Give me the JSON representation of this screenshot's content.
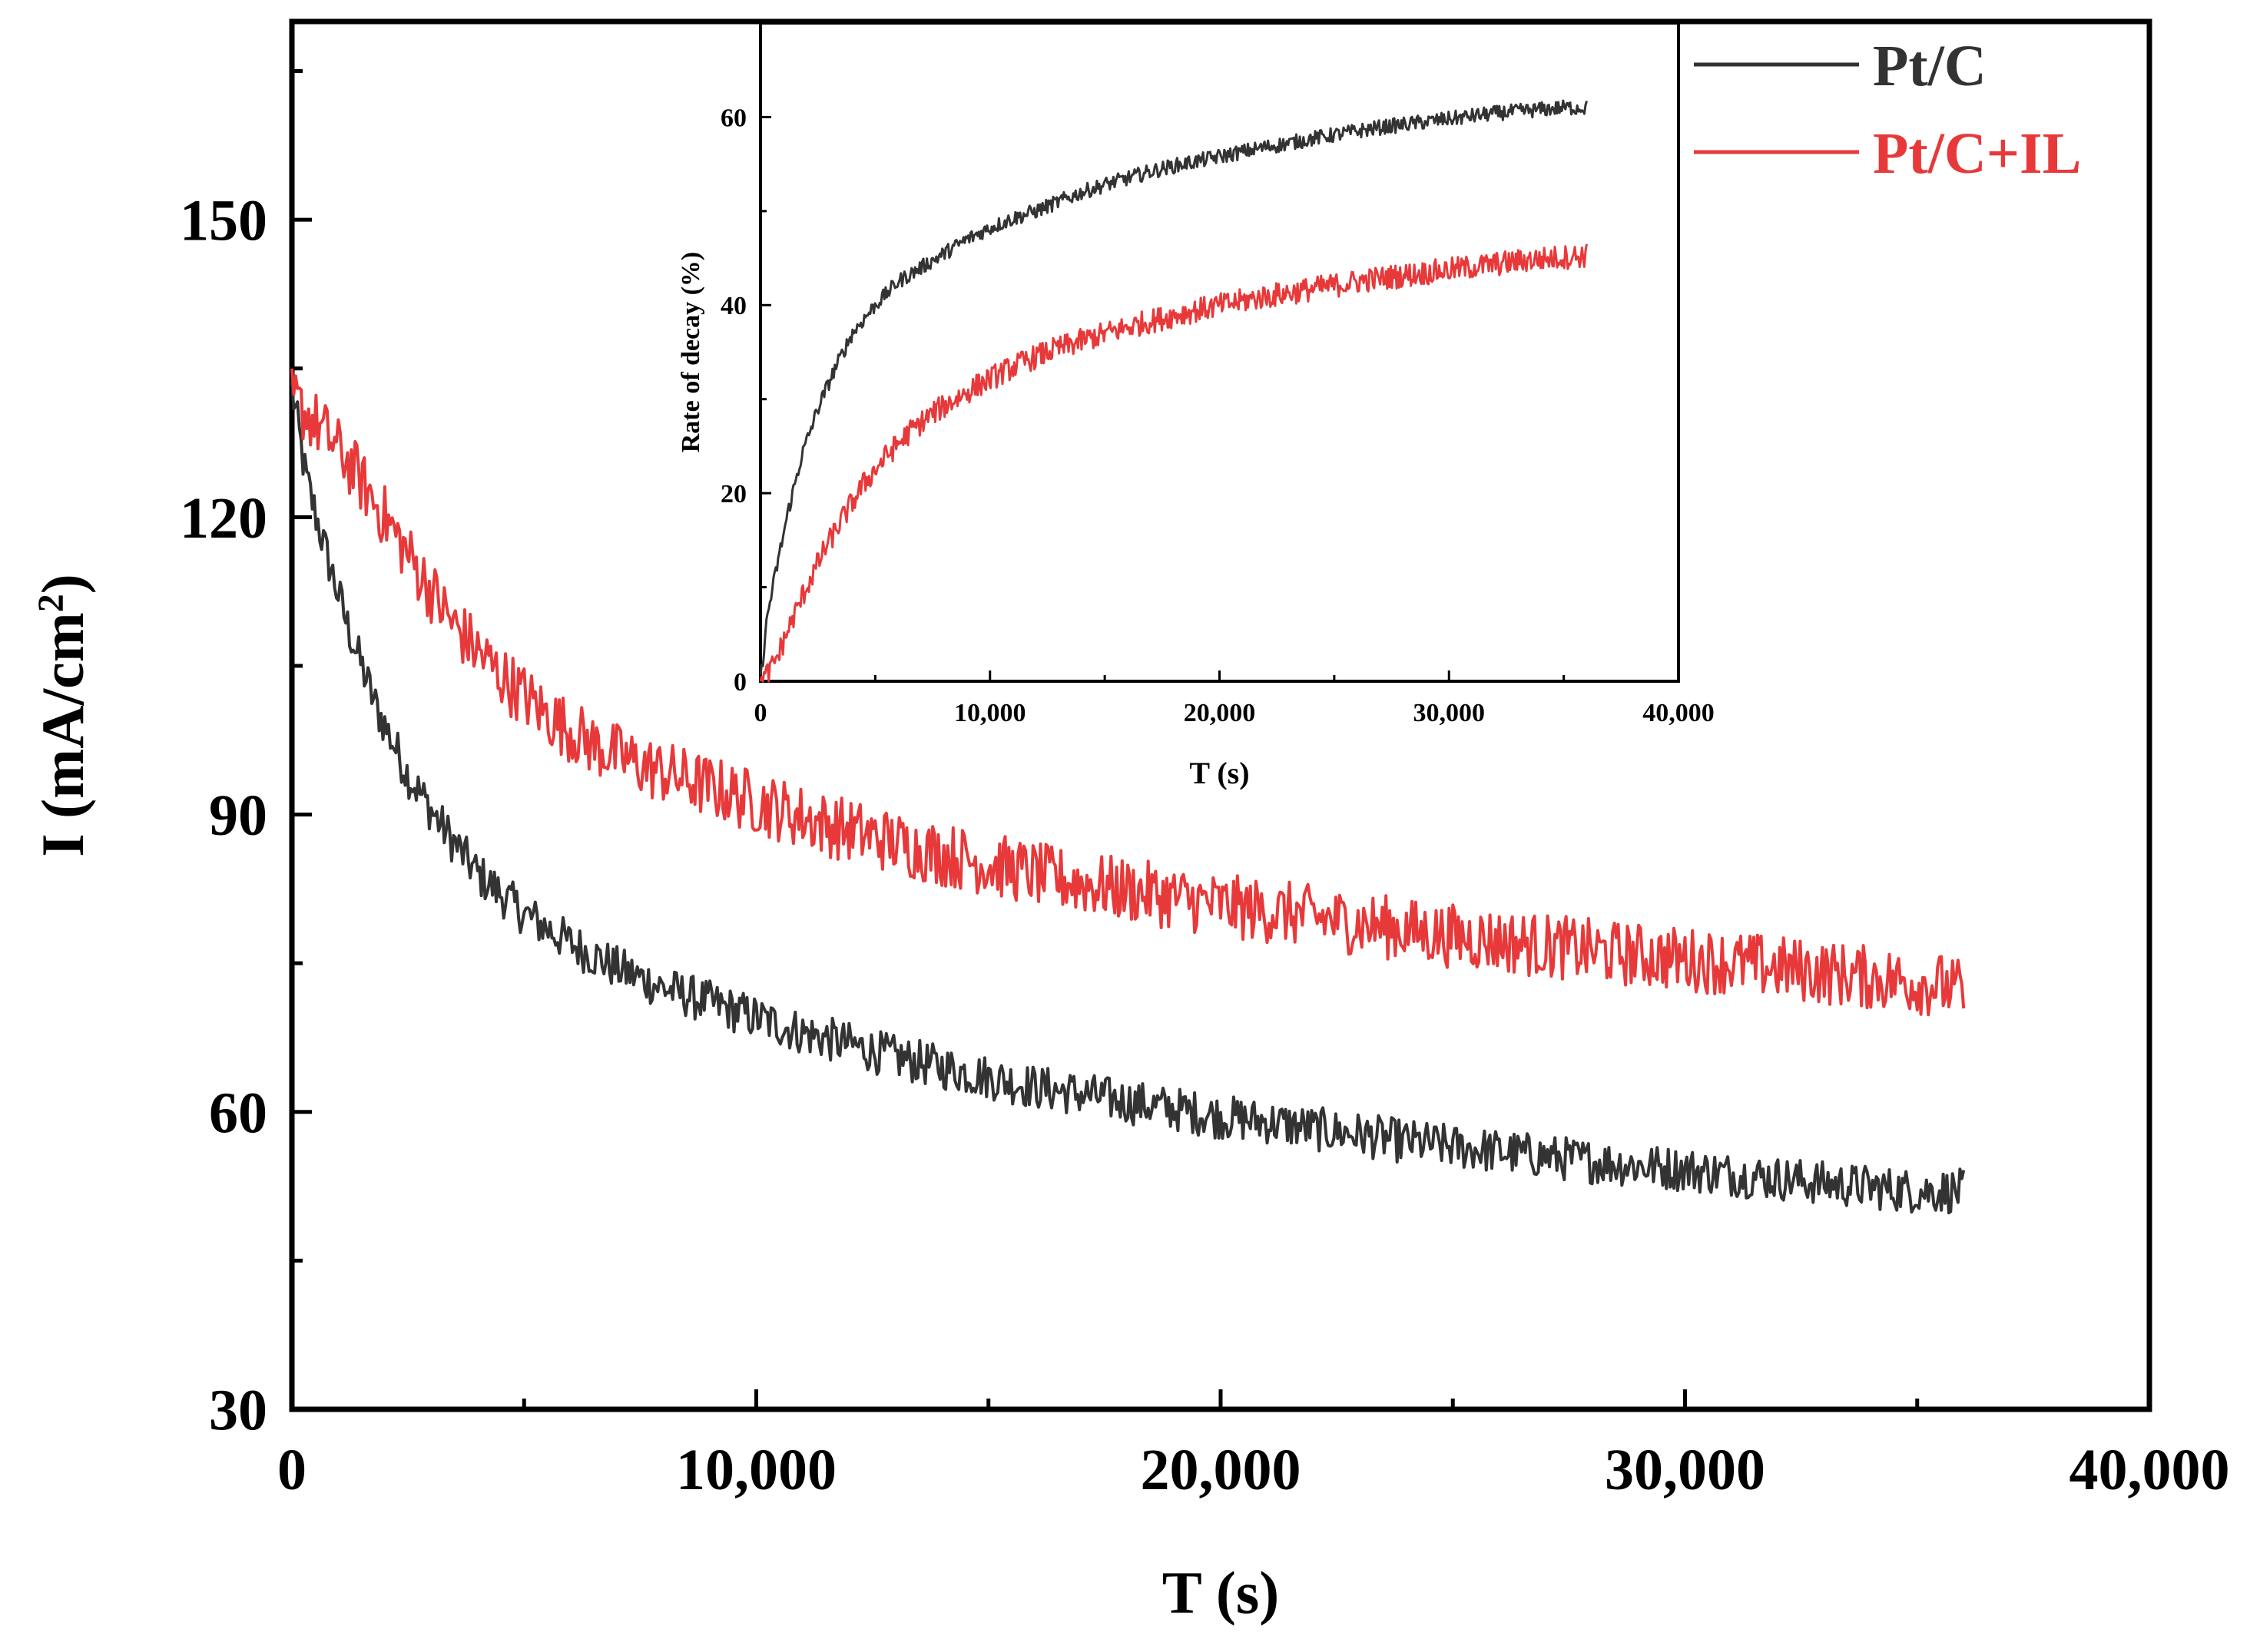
{
  "chart_data": [
    {
      "id": "main",
      "type": "line",
      "title": "",
      "xlabel": "T (s)",
      "ylabel": "I (mA/cm",
      "ylabel_sup": "2",
      "ylabel_close": ")",
      "xlim": [
        0,
        40000
      ],
      "ylim": [
        30,
        170
      ],
      "xticks": [
        0,
        10000,
        20000,
        30000,
        40000
      ],
      "xtick_labels": [
        "0",
        "10,000",
        "20,000",
        "30,000",
        "40,000"
      ],
      "yticks": [
        30,
        60,
        90,
        120,
        150
      ],
      "ytick_labels": [
        "30",
        "60",
        "90",
        "120",
        "150"
      ],
      "grid": false,
      "legend": "top-right",
      "series": [
        {
          "name": "Pt/C",
          "color": "#333333",
          "x": [
            0,
            300,
            700,
            1200,
            1800,
            2500,
            3200,
            4000,
            5000,
            6000,
            7000,
            8000,
            9000,
            10000,
            11000,
            12000,
            13000,
            14000,
            15000,
            16000,
            17000,
            18000,
            19000,
            20000,
            21000,
            22000,
            23000,
            24000,
            25000,
            26000,
            27000,
            28000,
            29000,
            30000,
            31000,
            32000,
            33000,
            34000,
            35000,
            36000
          ],
          "y": [
            133,
            124,
            117,
            109,
            101,
            94,
            89,
            84,
            80,
            77,
            74.5,
            72.5,
            71,
            69.5,
            68,
            66.8,
            65.5,
            64.5,
            63.5,
            62.5,
            61.8,
            61,
            60.3,
            59.5,
            59,
            58.3,
            57.7,
            57,
            56.5,
            56,
            55.5,
            55,
            54.6,
            54.2,
            53.7,
            53.3,
            52.8,
            52.4,
            52,
            52
          ]
        },
        {
          "name": "Pt/C+IL",
          "color": "#e8393a",
          "x": [
            0,
            400,
            800,
            1300,
            2000,
            2800,
            3500,
            4500,
            5500,
            6500,
            7500,
            8500,
            9500,
            10500,
            11500,
            12500,
            13500,
            14500,
            15500,
            16500,
            17500,
            18500,
            19500,
            20500,
            21500,
            22500,
            23500,
            24500,
            25500,
            26500,
            27500,
            28500,
            29500,
            30500,
            31500,
            32500,
            33500,
            34500,
            35500,
            36000
          ],
          "y": [
            132,
            130,
            128,
            125,
            120,
            114,
            109,
            104,
            100,
            97,
            95,
            93.5,
            92,
            90.5,
            89,
            87.8,
            86.5,
            85.5,
            84.5,
            83.5,
            82.7,
            82,
            81.2,
            80.5,
            80,
            79.3,
            78.7,
            78,
            77.5,
            77,
            76.5,
            76,
            75.6,
            75.2,
            74.8,
            74.3,
            73.8,
            73.3,
            72.8,
            72
          ]
        }
      ]
    },
    {
      "id": "inset",
      "type": "line",
      "title": "",
      "xlabel": "T (s)",
      "ylabel": "Rate of decay (%)",
      "xlim": [
        0,
        40000
      ],
      "ylim": [
        0,
        70
      ],
      "xticks": [
        0,
        10000,
        20000,
        30000,
        40000
      ],
      "xtick_labels": [
        "0",
        "10,000",
        "20,000",
        "30,000",
        "40,000"
      ],
      "yticks": [
        0,
        20,
        40,
        60
      ],
      "ytick_labels": [
        "0",
        "20",
        "40",
        "60"
      ],
      "grid": false,
      "series": [
        {
          "name": "Pt/C",
          "color": "#333333",
          "x": [
            0,
            300,
            700,
            1200,
            1800,
            2500,
            3200,
            4000,
            5000,
            6000,
            7000,
            8000,
            9000,
            10000,
            11000,
            12000,
            13000,
            14000,
            15000,
            16000,
            17000,
            18000,
            19000,
            20000,
            21000,
            22000,
            23000,
            24000,
            25000,
            26000,
            27000,
            28000,
            29000,
            30000,
            31000,
            32000,
            33000,
            34000,
            35000,
            36000
          ],
          "y": [
            0,
            7,
            12,
            18,
            24,
            29,
            33,
            37,
            40,
            42.5,
            44,
            45.5,
            47,
            48.2,
            49.2,
            50,
            51,
            52,
            52.8,
            53.5,
            54.2,
            54.8,
            55.3,
            55.8,
            56.3,
            56.8,
            57.2,
            57.7,
            58.1,
            58.5,
            58.9,
            59.2,
            59.5,
            59.8,
            60.1,
            60.4,
            60.6,
            60.8,
            61,
            61
          ]
        },
        {
          "name": "Pt/C+IL",
          "color": "#e8393a",
          "x": [
            0,
            400,
            800,
            1300,
            2000,
            2800,
            3500,
            4500,
            5500,
            6500,
            7500,
            8500,
            9500,
            10500,
            11500,
            12500,
            13500,
            14500,
            15500,
            16500,
            17500,
            18500,
            19500,
            20500,
            21500,
            22500,
            23500,
            24500,
            25500,
            26500,
            27500,
            28500,
            29500,
            30500,
            31500,
            32500,
            33500,
            34500,
            35500,
            36000
          ],
          "y": [
            0,
            1,
            3,
            6,
            10,
            14,
            17,
            21,
            24,
            26.5,
            28.5,
            30,
            31.5,
            32.8,
            34,
            35,
            35.8,
            36.6,
            37.3,
            38,
            38.6,
            39.2,
            39.7,
            40.2,
            40.7,
            41.1,
            41.5,
            41.9,
            42.3,
            42.7,
            43,
            43.3,
            43.6,
            43.9,
            44.2,
            44.5,
            44.8,
            45,
            45.2,
            45.3
          ]
        }
      ]
    }
  ]
}
